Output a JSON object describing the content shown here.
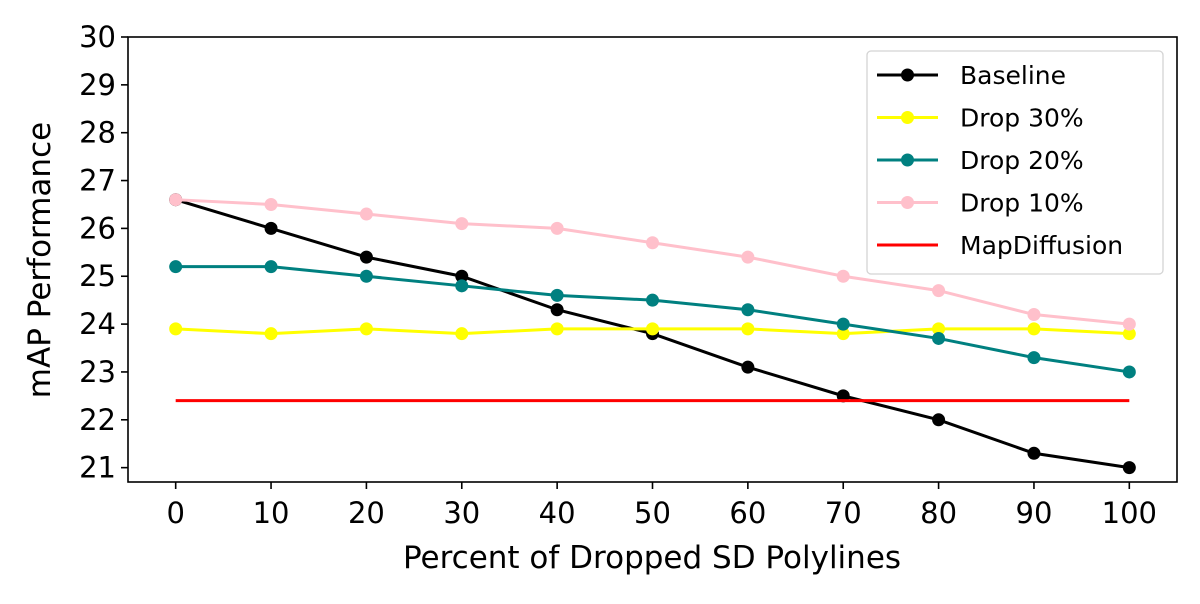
{
  "chart_data": {
    "type": "line",
    "title": "",
    "xlabel": "Percent of Dropped SD Polylines",
    "ylabel": "mAP Performance",
    "xlim": [
      -5,
      105
    ],
    "ylim": [
      20.7,
      30
    ],
    "xticks": [
      0,
      10,
      20,
      30,
      40,
      50,
      60,
      70,
      80,
      90,
      100
    ],
    "yticks": [
      21,
      22,
      23,
      24,
      25,
      26,
      27,
      28,
      29,
      30
    ],
    "grid": false,
    "legend_position": "top-right",
    "x": [
      0,
      10,
      20,
      30,
      40,
      50,
      60,
      70,
      80,
      90,
      100
    ],
    "series": [
      {
        "name": "Baseline",
        "color": "#000000",
        "marker": "circle",
        "values": [
          26.6,
          26.0,
          25.4,
          25.0,
          24.3,
          23.8,
          23.1,
          22.5,
          22.0,
          21.3,
          21.0
        ]
      },
      {
        "name": "Drop 30%",
        "color": "#ffff00",
        "marker": "circle",
        "values": [
          23.9,
          23.8,
          23.9,
          23.8,
          23.9,
          23.9,
          23.9,
          23.8,
          23.9,
          23.9,
          23.8
        ]
      },
      {
        "name": "Drop 20%",
        "color": "#008080",
        "marker": "circle",
        "values": [
          25.2,
          25.2,
          25.0,
          24.8,
          24.6,
          24.5,
          24.3,
          24.0,
          23.7,
          23.3,
          23.0
        ]
      },
      {
        "name": "Drop 10%",
        "color": "#ffc0cb",
        "marker": "circle",
        "values": [
          26.6,
          26.5,
          26.3,
          26.1,
          26.0,
          25.7,
          25.4,
          25.0,
          24.7,
          24.2,
          24.0
        ]
      },
      {
        "name": "MapDiffusion",
        "color": "#ff0000",
        "marker": "none",
        "values": [
          22.4,
          22.4,
          22.4,
          22.4,
          22.4,
          22.4,
          22.4,
          22.4,
          22.4,
          22.4,
          22.4
        ]
      }
    ]
  }
}
